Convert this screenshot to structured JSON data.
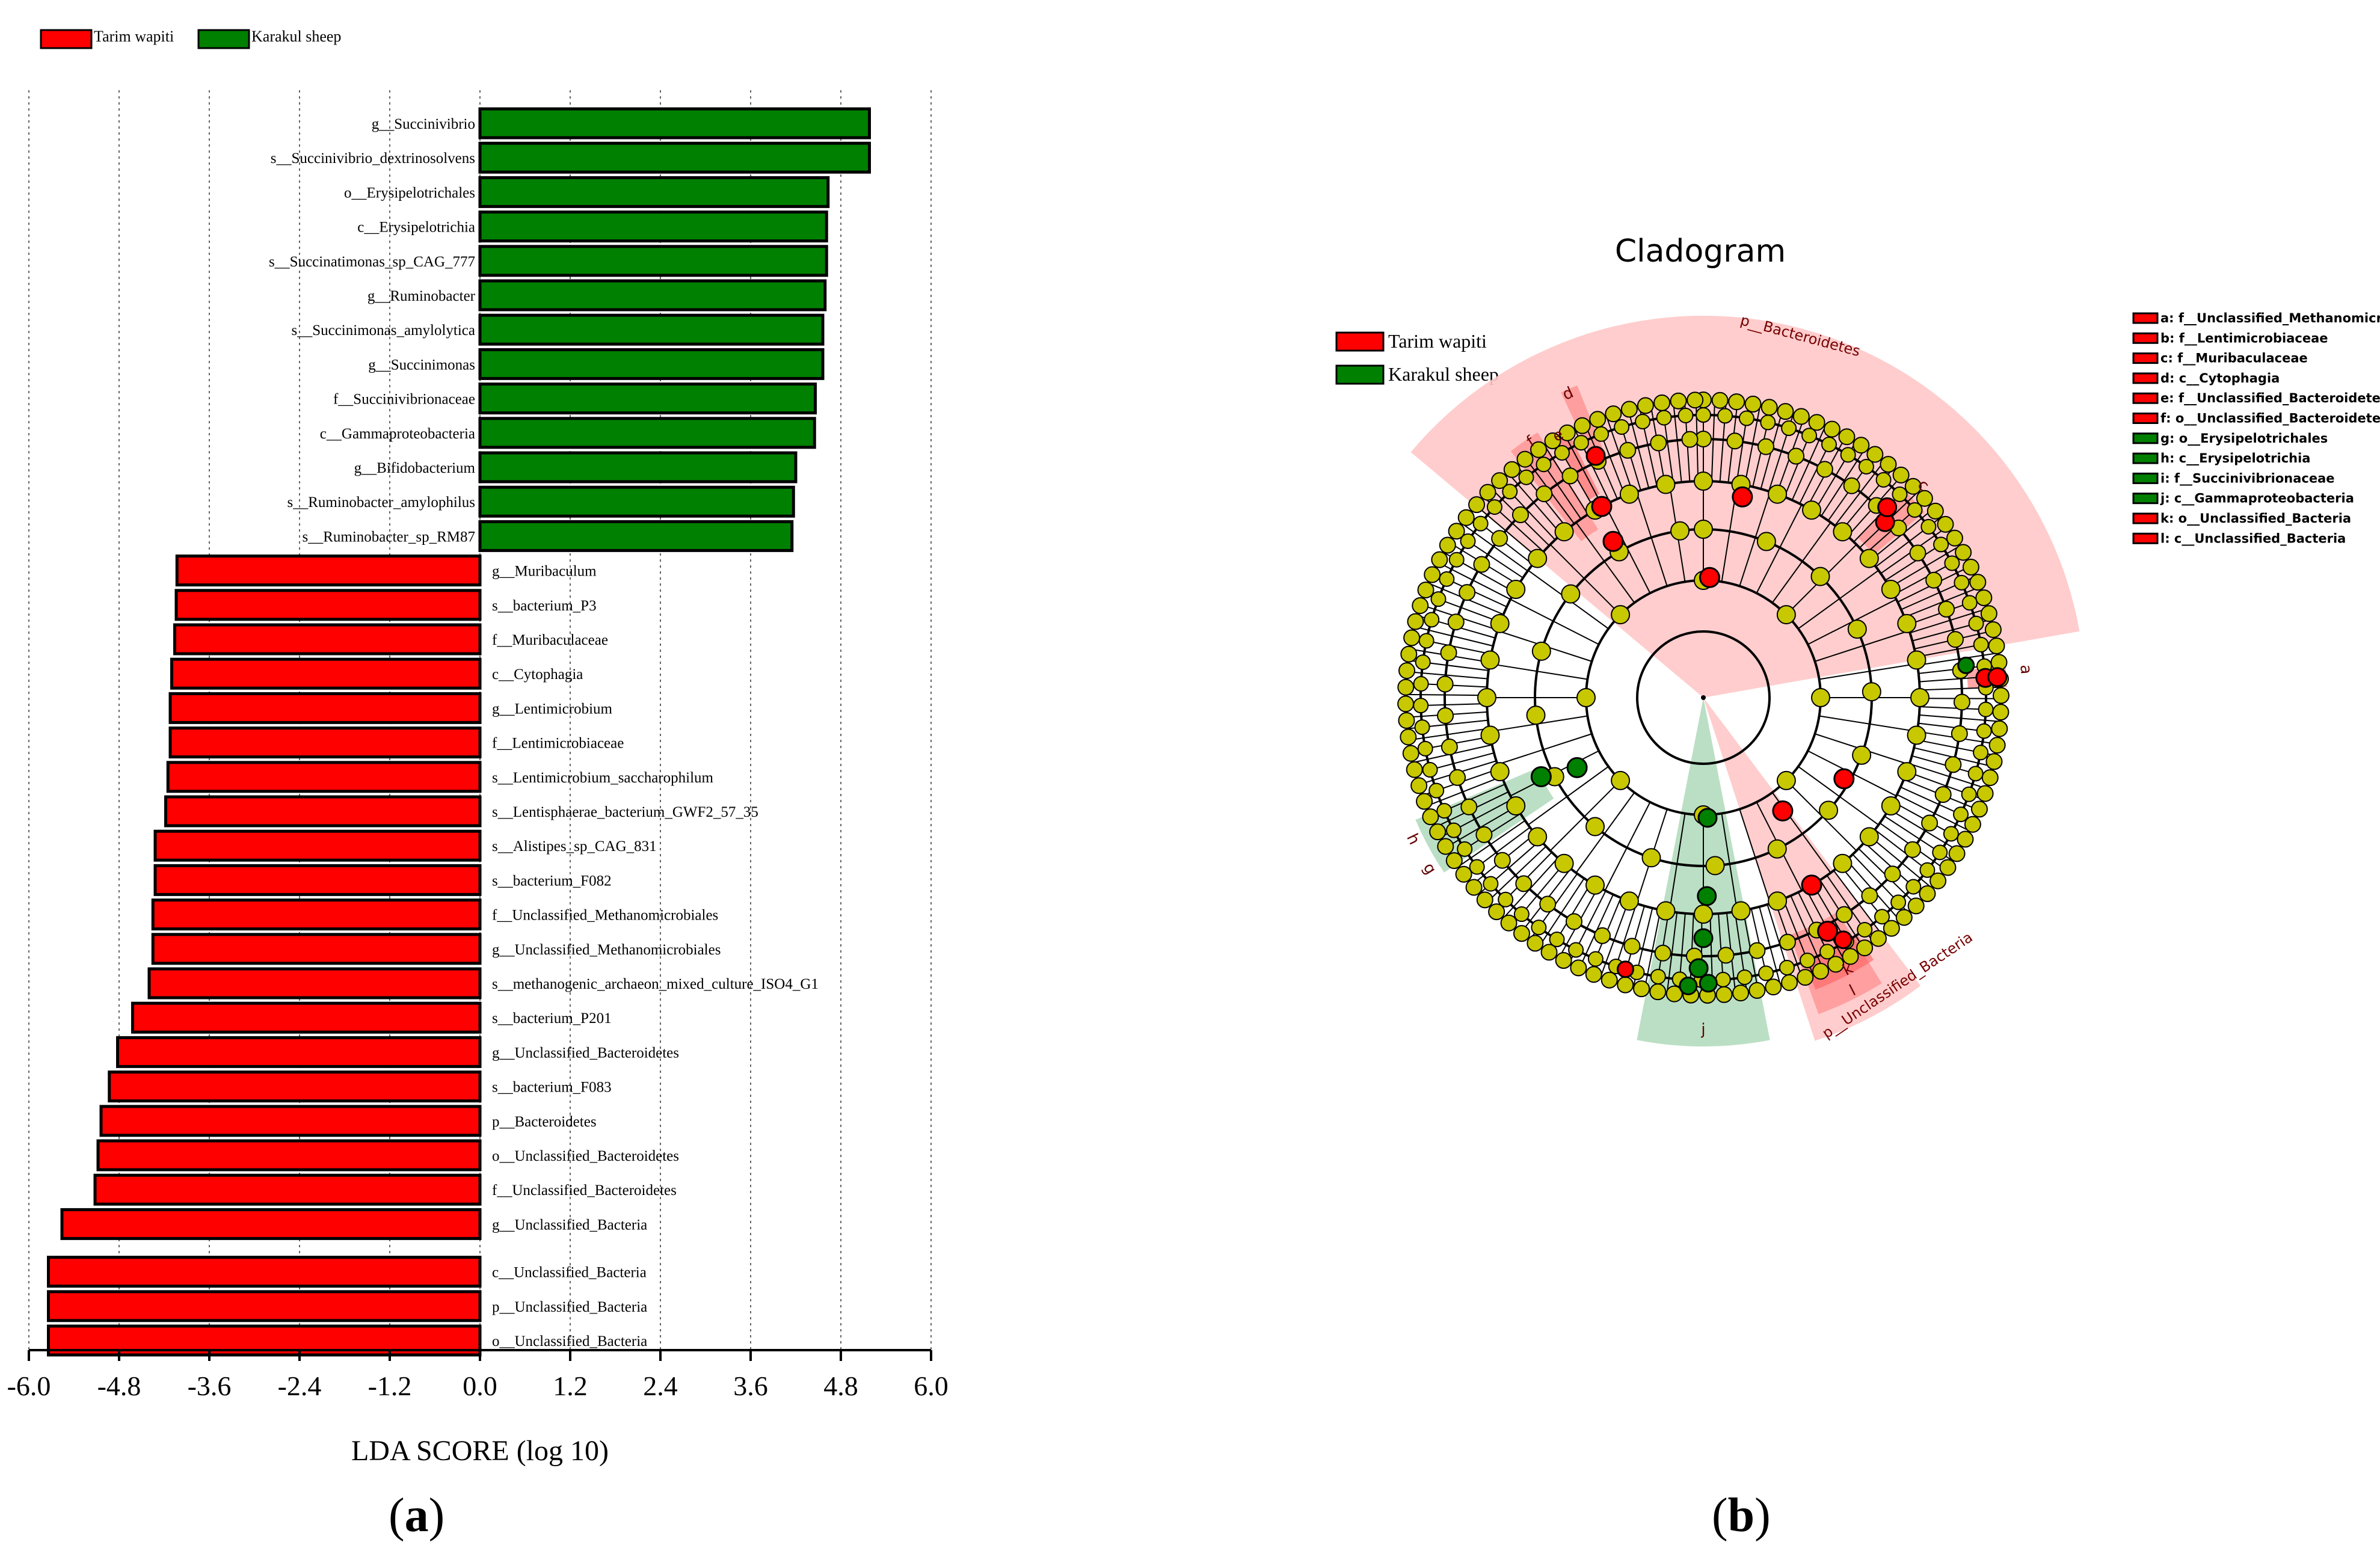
{
  "colors": {
    "tarim": "#ff0000",
    "karakul": "#008000",
    "node": "#c8c800",
    "tarim_shade": "#ffc8c8",
    "karakul_shade": "#b4dcbe"
  },
  "panel_a": {
    "label": "a",
    "legend": [
      {
        "name": "Tarim wapiti",
        "color": "#ff0000"
      },
      {
        "name": "Karakul sheep",
        "color": "#008000"
      }
    ]
  },
  "panel_b": {
    "label": "b",
    "legend": [
      {
        "name": "Tarim wapiti",
        "color": "#ff0000"
      },
      {
        "name": "Karakul sheep",
        "color": "#008000"
      }
    ],
    "key_items": [
      {
        "text": "a: f__Unclassified_Methanomicr",
        "color": "#ff0000"
      },
      {
        "text": "b: f__Lentimicrobiaceae",
        "color": "#ff0000"
      },
      {
        "text": "c: f__Muribaculaceae",
        "color": "#ff0000"
      },
      {
        "text": "d: c__Cytophagia",
        "color": "#ff0000"
      },
      {
        "text": "e: f__Unclassified_Bacteroidete",
        "color": "#ff0000"
      },
      {
        "text": "f: o__Unclassified_Bacteroidete",
        "color": "#ff0000"
      },
      {
        "text": "g: o__Erysipelotrichales",
        "color": "#008000"
      },
      {
        "text": "h: c__Erysipelotrichia",
        "color": "#008000"
      },
      {
        "text": "i: f__Succinivibrionaceae",
        "color": "#008000"
      },
      {
        "text": "j: c__Gammaproteobacteria",
        "color": "#008000"
      },
      {
        "text": "k: o__Unclassified_Bacteria",
        "color": "#ff0000"
      },
      {
        "text": "l: c__Unclassified_Bacteria",
        "color": "#ff0000"
      }
    ],
    "sector_labels": {
      "bacteroidetes": "p__Bacteroidetes",
      "unclassified": "p__Unclassified_Bacteria",
      "d": "d",
      "e": "e",
      "f": "f",
      "c": "c",
      "a": "a",
      "g": "g",
      "h": "h",
      "i": "i",
      "j": "j",
      "k": "k",
      "l": "l"
    }
  },
  "chart_data": [
    {
      "type": "bar",
      "orientation": "horizontal",
      "xlabel": "LDA SCORE (log 10)",
      "xlim": [
        -6.0,
        6.0
      ],
      "ticks": [
        "-6.0",
        "-4.8",
        "-3.6",
        "-2.4",
        "-1.2",
        "0.0",
        "1.2",
        "2.4",
        "3.6",
        "4.8",
        "6.0"
      ],
      "grid": "vertical dotted",
      "legend_position": "top-left",
      "series": [
        {
          "name": "Tarim wapiti"
        },
        {
          "name": "Karakul sheep"
        }
      ],
      "bars": [
        {
          "name": "g__Succinivibrio",
          "value": 5.18,
          "group": "Karakul sheep"
        },
        {
          "name": "s__Succinivibrio_dextrinosolvens",
          "value": 5.18,
          "group": "Karakul sheep"
        },
        {
          "name": "o__Erysipelotrichales",
          "value": 4.63,
          "group": "Karakul sheep"
        },
        {
          "name": "c__Erysipelotrichia",
          "value": 4.61,
          "group": "Karakul sheep"
        },
        {
          "name": "s__Succinatimonas_sp_CAG_777",
          "value": 4.61,
          "group": "Karakul sheep"
        },
        {
          "name": "g__Ruminobacter",
          "value": 4.59,
          "group": "Karakul sheep"
        },
        {
          "name": "s__Succinimonas_amylolytica",
          "value": 4.56,
          "group": "Karakul sheep"
        },
        {
          "name": "g__Succinimonas",
          "value": 4.56,
          "group": "Karakul sheep"
        },
        {
          "name": "f__Succinivibrionaceae",
          "value": 4.46,
          "group": "Karakul sheep"
        },
        {
          "name": "c__Gammaproteobacteria",
          "value": 4.45,
          "group": "Karakul sheep"
        },
        {
          "name": "g__Bifidobacterium",
          "value": 4.2,
          "group": "Karakul sheep"
        },
        {
          "name": "s__Ruminobacter_amylophilus",
          "value": 4.17,
          "group": "Karakul sheep"
        },
        {
          "name": "s__Ruminobacter_sp_RM87",
          "value": 4.15,
          "group": "Karakul sheep"
        },
        {
          "name": "g__Muribaculum",
          "value": -4.03,
          "group": "Tarim wapiti"
        },
        {
          "name": "s__bacterium_P3",
          "value": -4.04,
          "group": "Tarim wapiti"
        },
        {
          "name": "f__Muribaculaceae",
          "value": -4.06,
          "group": "Tarim wapiti"
        },
        {
          "name": "c__Cytophagia",
          "value": -4.1,
          "group": "Tarim wapiti"
        },
        {
          "name": "g__Lentimicrobium",
          "value": -4.12,
          "group": "Tarim wapiti"
        },
        {
          "name": "f__Lentimicrobiaceae",
          "value": -4.12,
          "group": "Tarim wapiti"
        },
        {
          "name": "s__Lentimicrobium_saccharophilum",
          "value": -4.15,
          "group": "Tarim wapiti"
        },
        {
          "name": "s__Lentisphaerae_bacterium_GWF2_57_35",
          "value": -4.18,
          "group": "Tarim wapiti"
        },
        {
          "name": "s__Alistipes_sp_CAG_831",
          "value": -4.32,
          "group": "Tarim wapiti"
        },
        {
          "name": "s__bacterium_F082",
          "value": -4.32,
          "group": "Tarim wapiti"
        },
        {
          "name": "f__Unclassified_Methanomicrobiales",
          "value": -4.35,
          "group": "Tarim wapiti"
        },
        {
          "name": "g__Unclassified_Methanomicrobiales",
          "value": -4.35,
          "group": "Tarim wapiti"
        },
        {
          "name": "s__methanogenic_archaeon_mixed_culture_ISO4_G1",
          "value": -4.4,
          "group": "Tarim wapiti"
        },
        {
          "name": "s__bacterium_P201",
          "value": -4.62,
          "group": "Tarim wapiti"
        },
        {
          "name": "g__Unclassified_Bacteroidetes",
          "value": -4.82,
          "group": "Tarim wapiti"
        },
        {
          "name": "s__bacterium_F083",
          "value": -4.93,
          "group": "Tarim wapiti"
        },
        {
          "name": "p__Bacteroidetes",
          "value": -5.04,
          "group": "Tarim wapiti"
        },
        {
          "name": "o__Unclassified_Bacteroidetes",
          "value": -5.08,
          "group": "Tarim wapiti"
        },
        {
          "name": "f__Unclassified_Bacteroidetes",
          "value": -5.12,
          "group": "Tarim wapiti"
        },
        {
          "name": "g__Unclassified_Bacteria",
          "value": -5.56,
          "group": "Tarim wapiti"
        },
        {
          "name": "c__Unclassified_Bacteria",
          "value": -5.74,
          "group": "Tarim wapiti"
        },
        {
          "name": "p__Unclassified_Bacteria",
          "value": -5.74,
          "group": "Tarim wapiti"
        },
        {
          "name": "o__Unclassified_Bacteria",
          "value": -5.74,
          "group": "Tarim wapiti"
        }
      ]
    },
    {
      "type": "cladogram",
      "title": "Cladogram"
    }
  ]
}
